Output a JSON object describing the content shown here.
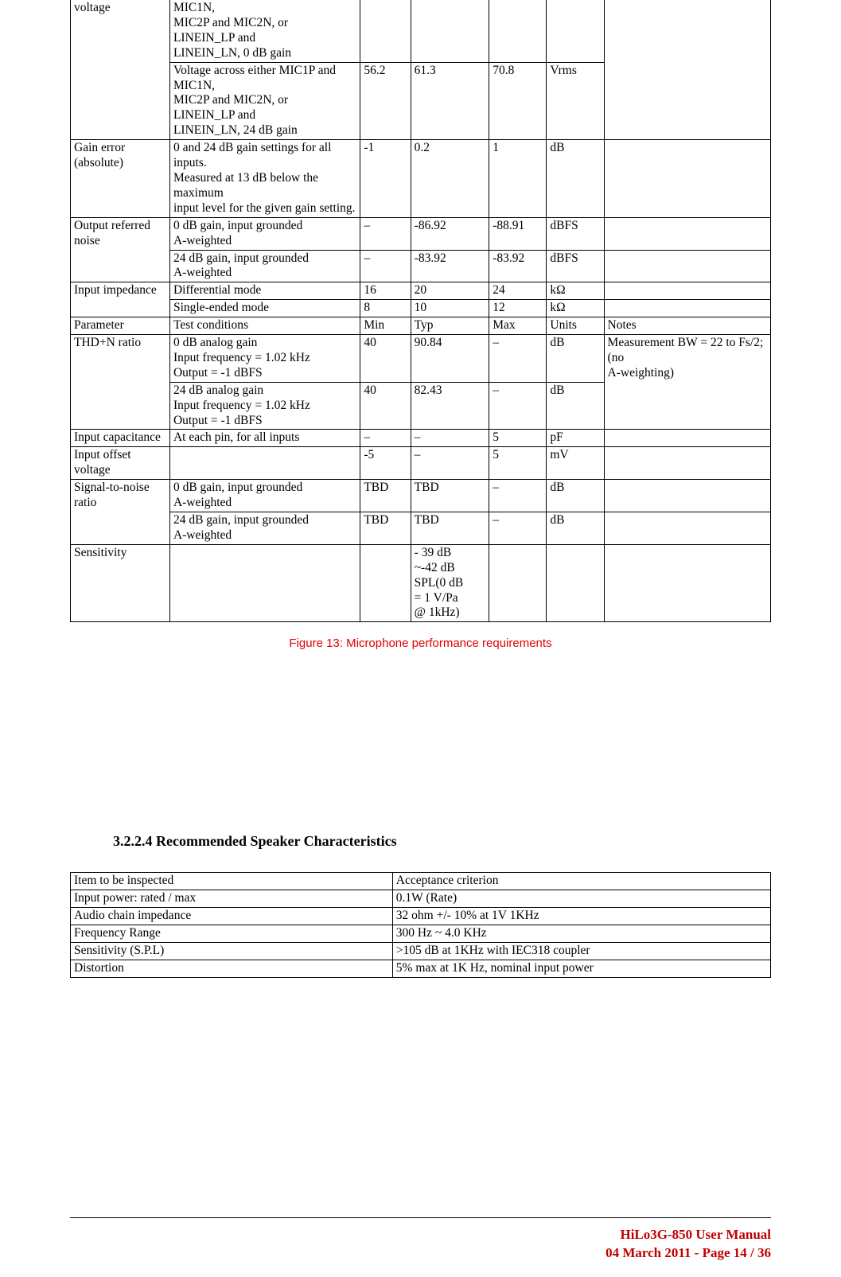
{
  "colors": {
    "text": "#000000",
    "border": "#000000",
    "caption": "#e00000",
    "footer": "#c00000",
    "background": "#ffffff"
  },
  "table1": {
    "rows": [
      {
        "param": "voltage",
        "cond": "MIC1N,\nMIC2P and MIC2N, or\nLINEIN_LP and\nLINEIN_LN, 0 dB gain",
        "min": "",
        "typ": "",
        "max": "",
        "unit": "",
        "notes": "",
        "topOpenParam": true,
        "topOpenCond": true,
        "notesRowspan": 2
      },
      {
        "param": "",
        "cond": "Voltage across either MIC1P and MIC1N,\nMIC2P and MIC2N, or\nLINEIN_LP and\nLINEIN_LN, 24 dB gain",
        "min": "56.2",
        "typ": "61.3",
        "max": "70.8",
        "unit": "Vrms",
        "paramMerge": true
      },
      {
        "param": "Gain error (absolute)",
        "cond": "0 and 24 dB gain settings for all inputs.\nMeasured at 13 dB below the maximum\ninput level for the given gain setting.",
        "min": "-1",
        "typ": "0.2",
        "max": "1",
        "unit": "dB",
        "notes": ""
      },
      {
        "param": "Output referred noise",
        "cond": "0 dB gain, input grounded\nA-weighted",
        "min": "–",
        "typ": "-86.92",
        "max": "-88.91",
        "unit": "dBFS",
        "notes": "",
        "paramRowspan": 2
      },
      {
        "cond": "24 dB gain, input grounded\nA-weighted",
        "min": "–",
        "typ": "-83.92",
        "max": "-83.92",
        "unit": "dBFS",
        "notes": ""
      },
      {
        "param": "Input impedance",
        "cond": "Differential mode",
        "min": "16",
        "typ": "20",
        "max": "24",
        "unit": "kΩ",
        "notes": "",
        "paramRowspan": 2
      },
      {
        "cond": "Single-ended mode",
        "min": "8",
        "typ": "10",
        "max": "12",
        "unit": "kΩ",
        "notes": ""
      },
      {
        "param": "Parameter",
        "cond": "Test conditions",
        "min": "Min",
        "typ": "Typ",
        "max": "Max",
        "unit": "Units",
        "notes": "Notes"
      },
      {
        "param": "THD+N ratio",
        "cond": "0 dB analog gain\nInput frequency = 1.02 kHz\nOutput = -1 dBFS",
        "min": "40",
        "typ": "90.84",
        "max": "–",
        "unit": "dB",
        "notes": "Measurement BW = 22 to Fs/2; (no\nA-weighting)",
        "paramRowspan": 2,
        "notesRowspan": 2
      },
      {
        "cond": "24 dB analog gain\nInput frequency = 1.02 kHz\nOutput = -1 dBFS",
        "min": "40",
        "typ": "82.43",
        "max": "–",
        "unit": "dB"
      },
      {
        "param": "Input capacitance",
        "cond": "At each pin, for all inputs",
        "min": "–",
        "typ": "–",
        "max": "5",
        "unit": "pF",
        "notes": ""
      },
      {
        "param": "Input offset voltage",
        "cond": "",
        "min": "-5",
        "typ": "–",
        "max": "5",
        "unit": "mV",
        "notes": ""
      },
      {
        "param": "Signal-to-noise ratio",
        "cond": "0 dB gain, input grounded\nA-weighted",
        "min": "TBD",
        "typ": "TBD",
        "max": "–",
        "unit": "dB",
        "notes": "",
        "paramRowspan": 2
      },
      {
        "cond": "24 dB gain, input grounded\nA-weighted",
        "min": "TBD",
        "typ": "TBD",
        "max": "–",
        "unit": "dB",
        "notes": ""
      },
      {
        "param": "Sensitivity",
        "cond": "",
        "min": "",
        "typ": "- 39 dB\n~-42 dB\nSPL(0 dB\n= 1 V/Pa\n@ 1kHz)",
        "max": "",
        "unit": "",
        "notes": ""
      }
    ]
  },
  "caption": "Figure 13: Microphone performance requirements",
  "heading": "3.2.2.4  Recommended Speaker Characteristics",
  "table2": {
    "rows": [
      {
        "item": "Item to be inspected",
        "crit": "Acceptance criterion"
      },
      {
        "item": "Input power: rated / max",
        "crit": "0.1W (Rate)"
      },
      {
        "item": "Audio chain impedance",
        "crit": "32 ohm +/- 10% at 1V 1KHz"
      },
      {
        "item": "Frequency Range",
        "crit": "300 Hz ~ 4.0 KHz"
      },
      {
        "item": "Sensitivity (S.P.L)",
        "crit": ">105 dB at 1KHz with IEC318 coupler"
      },
      {
        "item": "Distortion",
        "crit": "5% max at 1K Hz, nominal input power"
      }
    ]
  },
  "footer": {
    "line1": "HiLo3G-850 User Manual",
    "line2": "04 March 2011 -   Page 14 / 36"
  }
}
